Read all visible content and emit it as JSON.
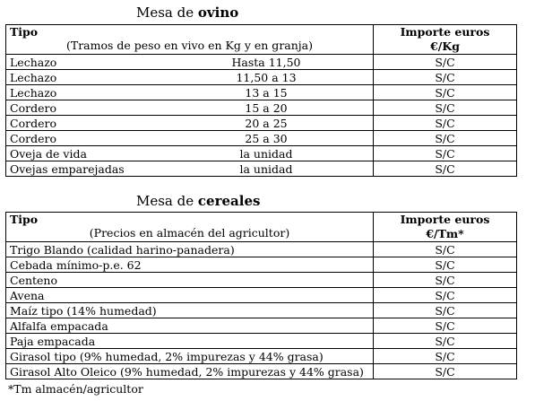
{
  "ovino": {
    "caption_prefix": "Mesa de ",
    "caption_bold": "ovino",
    "header": {
      "tipo": "Tipo",
      "subtitle": "(Tramos de peso en vivo en Kg y en granja)",
      "amount_line1": "Importe euros",
      "amount_line2": "€/Kg"
    },
    "rows": [
      {
        "tipo": "Lechazo",
        "tramo": "Hasta 11,50",
        "importe": "S/C"
      },
      {
        "tipo": "Lechazo",
        "tramo": "11,50 a 13",
        "importe": "S/C"
      },
      {
        "tipo": "Lechazo",
        "tramo": "13 a 15",
        "importe": "S/C"
      },
      {
        "tipo": "Cordero",
        "tramo": "15 a 20",
        "importe": "S/C"
      },
      {
        "tipo": "Cordero",
        "tramo": "20 a 25",
        "importe": "S/C"
      },
      {
        "tipo": "Cordero",
        "tramo": "25 a 30",
        "importe": "S/C"
      },
      {
        "tipo": "Oveja de vida",
        "tramo": "la unidad",
        "importe": "S/C"
      },
      {
        "tipo": "Ovejas emparejadas",
        "tramo": "la unidad",
        "importe": "S/C"
      }
    ]
  },
  "cereales": {
    "caption_prefix": "Mesa de ",
    "caption_bold": "cereales",
    "header": {
      "tipo": "Tipo",
      "subtitle": "(Precios en almacén del agricultor)",
      "amount_line1": "Importe euros",
      "amount_line2": "€/Tm*"
    },
    "rows": [
      {
        "tipo": "Trigo Blando (calidad harino-panadera)",
        "importe": "S/C"
      },
      {
        "tipo": "Cebada mínimo-p.e. 62",
        "importe": "S/C"
      },
      {
        "tipo": "Centeno",
        "importe": "S/C"
      },
      {
        "tipo": "Avena",
        "importe": "S/C"
      },
      {
        "tipo": "Maíz tipo (14% humedad)",
        "importe": "S/C"
      },
      {
        "tipo": "Alfalfa empacada",
        "importe": "S/C"
      },
      {
        "tipo": "Paja empacada",
        "importe": "S/C"
      },
      {
        "tipo": "Girasol tipo (9% humedad, 2% impurezas y 44% grasa)",
        "importe": "S/C"
      },
      {
        "tipo": "Girasol Alto Oleico (9% humedad, 2% impurezas y 44% grasa)",
        "importe": "S/C"
      }
    ]
  },
  "footnote": "*Tm almacén/agricultor"
}
